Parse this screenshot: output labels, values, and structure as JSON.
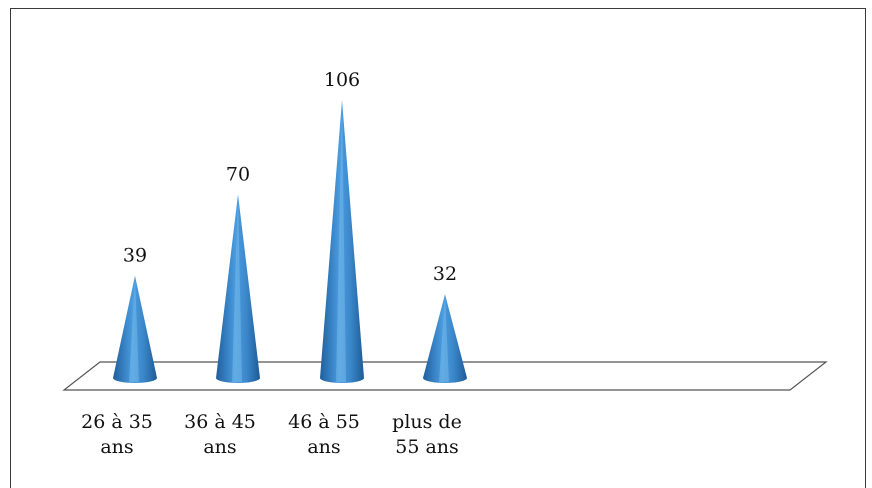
{
  "chart_data": {
    "type": "bar",
    "shape": "cone",
    "categories": [
      [
        "26 à 35",
        "ans"
      ],
      [
        "36 à 45",
        "ans"
      ],
      [
        "46 à 55",
        "ans"
      ],
      [
        "plus de",
        "55 ans"
      ]
    ],
    "values": [
      39,
      70,
      106,
      32
    ],
    "ylim": [
      0,
      106
    ],
    "grid": false,
    "legend": "none",
    "colors": {
      "cone_dark": "#1f5f9e",
      "cone_mid": "#3f8fd3",
      "cone_light": "#7cc1f0",
      "floor_stroke": "#555555"
    }
  }
}
